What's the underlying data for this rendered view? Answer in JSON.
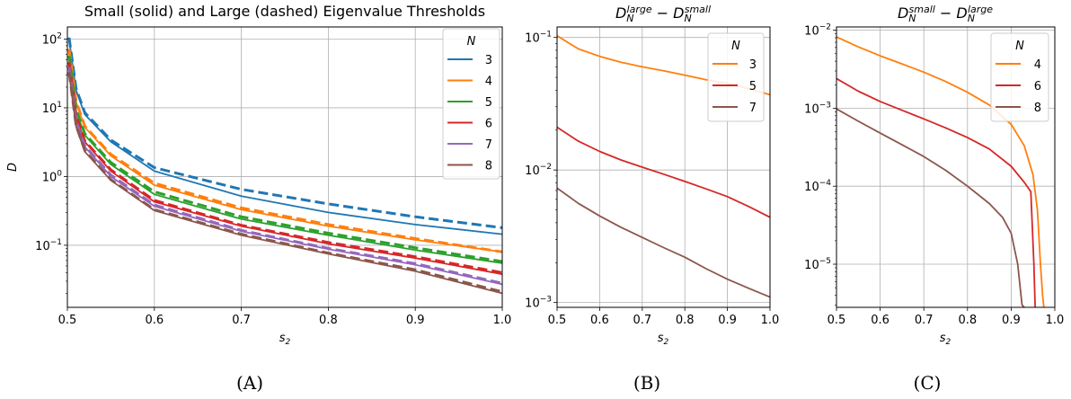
{
  "colors": {
    "N3": "#1f77b4",
    "N4": "#ff7f0e",
    "N5": "#2ca02c",
    "N6": "#d62728",
    "N7": "#9467bd",
    "N8": "#8c564b"
  },
  "chart_data": [
    {
      "panel": "A",
      "caption": "(A)",
      "type": "line",
      "title": "Small (solid) and Large (dashed) Eigenvalue Thresholds",
      "xlabel": "s2",
      "ylabel": "D",
      "xlim": [
        0.5,
        1.0
      ],
      "ylim": [
        0.0125,
        150
      ],
      "yscale": "log",
      "grid": true,
      "xticks": [
        "0.5",
        "0.6",
        "0.7",
        "0.8",
        "0.9",
        "1.0"
      ],
      "yticks": [
        "10^2",
        "10^1",
        "10^0",
        "10^-1"
      ],
      "legend": {
        "title": "N",
        "placement": "top-right",
        "labels": [
          "3",
          "4",
          "5",
          "6",
          "7",
          "8"
        ]
      },
      "x": [
        0.502,
        0.51,
        0.52,
        0.55,
        0.6,
        0.7,
        0.8,
        0.9,
        1.0
      ],
      "series": [
        {
          "name": "3",
          "style": "solid",
          "values": [
            100,
            18,
            8,
            3.2,
            1.2,
            0.52,
            0.3,
            0.2,
            0.145
          ]
        },
        {
          "name": "3",
          "style": "dashed",
          "values": [
            105,
            19,
            8.5,
            3.4,
            1.35,
            0.65,
            0.4,
            0.26,
            0.18
          ]
        },
        {
          "name": "4",
          "style": "solid",
          "values": [
            70,
            12,
            5.2,
            2.0,
            0.75,
            0.33,
            0.19,
            0.12,
            0.08
          ]
        },
        {
          "name": "4",
          "style": "dashed",
          "values": [
            72,
            12.5,
            5.4,
            2.1,
            0.8,
            0.35,
            0.2,
            0.125,
            0.08
          ]
        },
        {
          "name": "5",
          "style": "solid",
          "values": [
            55,
            9,
            4.0,
            1.5,
            0.55,
            0.24,
            0.14,
            0.085,
            0.055
          ]
        },
        {
          "name": "5",
          "style": "dashed",
          "values": [
            57,
            9.5,
            4.2,
            1.6,
            0.6,
            0.26,
            0.15,
            0.092,
            0.058
          ]
        },
        {
          "name": "6",
          "style": "solid",
          "values": [
            45,
            7.5,
            3.2,
            1.2,
            0.43,
            0.19,
            0.105,
            0.065,
            0.038
          ]
        },
        {
          "name": "6",
          "style": "dashed",
          "values": [
            46,
            7.7,
            3.3,
            1.25,
            0.45,
            0.195,
            0.11,
            0.068,
            0.04
          ]
        },
        {
          "name": "7",
          "style": "solid",
          "values": [
            38,
            6.2,
            2.7,
            1.0,
            0.37,
            0.16,
            0.088,
            0.052,
            0.027
          ]
        },
        {
          "name": "7",
          "style": "dashed",
          "values": [
            39,
            6.4,
            2.8,
            1.05,
            0.385,
            0.165,
            0.09,
            0.054,
            0.028
          ]
        },
        {
          "name": "8",
          "style": "solid",
          "values": [
            32,
            5.3,
            2.3,
            0.88,
            0.32,
            0.14,
            0.075,
            0.042,
            0.02
          ]
        },
        {
          "name": "8",
          "style": "dashed",
          "values": [
            33,
            5.5,
            2.4,
            0.9,
            0.33,
            0.145,
            0.077,
            0.044,
            0.021
          ]
        }
      ]
    },
    {
      "panel": "B",
      "caption": "(B)",
      "type": "line",
      "title": "D_N^large − D_N^small",
      "xlabel": "s2",
      "ylabel": "",
      "xlim": [
        0.5,
        1.0
      ],
      "ylim": [
        0.00092,
        0.12
      ],
      "yscale": "log",
      "grid": true,
      "xticks": [
        "0.5",
        "0.6",
        "0.7",
        "0.8",
        "0.9",
        "1.0"
      ],
      "yticks": [
        "10^-1",
        "10^-2",
        "10^-3"
      ],
      "legend": {
        "title": "N",
        "placement": "top-right",
        "labels": [
          "3",
          "5",
          "7"
        ]
      },
      "x": [
        0.5,
        0.55,
        0.6,
        0.65,
        0.7,
        0.75,
        0.8,
        0.85,
        0.9,
        0.95,
        1.0
      ],
      "series": [
        {
          "name": "3",
          "color_key": "N4",
          "values": [
            0.103,
            0.082,
            0.072,
            0.065,
            0.06,
            0.056,
            0.052,
            0.048,
            0.045,
            0.041,
            0.037
          ]
        },
        {
          "name": "5",
          "color_key": "N6",
          "values": [
            0.021,
            0.0165,
            0.0138,
            0.0119,
            0.0105,
            0.0093,
            0.0082,
            0.0072,
            0.0063,
            0.0053,
            0.0044
          ]
        },
        {
          "name": "7",
          "color_key": "N8",
          "values": [
            0.0073,
            0.0056,
            0.0045,
            0.0037,
            0.0031,
            0.0026,
            0.0022,
            0.0018,
            0.0015,
            0.00128,
            0.0011
          ]
        }
      ]
    },
    {
      "panel": "C",
      "caption": "(C)",
      "type": "line",
      "title": "D_N^small − D_N^large",
      "xlabel": "s2",
      "ylabel": "",
      "xlim": [
        0.5,
        1.0
      ],
      "ylim": [
        2.8e-06,
        0.011
      ],
      "yscale": "log",
      "grid": true,
      "xticks": [
        "0.5",
        "0.6",
        "0.7",
        "0.8",
        "0.9",
        "1.0"
      ],
      "yticks": [
        "10^-2",
        "10^-3",
        "10^-4",
        "10^-5"
      ],
      "legend": {
        "title": "N",
        "placement": "top-right",
        "labels": [
          "4",
          "6",
          "8"
        ]
      },
      "series": [
        {
          "name": "4",
          "color_key": "N4",
          "x": [
            0.5,
            0.55,
            0.6,
            0.65,
            0.7,
            0.75,
            0.8,
            0.85,
            0.9,
            0.93,
            0.95,
            0.96,
            0.967,
            0.972,
            0.975
          ],
          "values": [
            0.0082,
            0.0061,
            0.0047,
            0.0037,
            0.0029,
            0.0022,
            0.0016,
            0.0011,
            0.00062,
            0.00033,
            0.00014,
            5e-05,
            1e-05,
            4e-06,
            2.8e-06
          ]
        },
        {
          "name": "6",
          "color_key": "N6",
          "x": [
            0.5,
            0.55,
            0.6,
            0.65,
            0.7,
            0.75,
            0.8,
            0.85,
            0.9,
            0.93,
            0.945,
            0.952,
            0.955
          ],
          "values": [
            0.0024,
            0.00165,
            0.00122,
            0.00094,
            0.00073,
            0.00056,
            0.00042,
            0.0003,
            0.00018,
            0.000112,
            8.5e-05,
            1e-05,
            2.8e-06
          ]
        },
        {
          "name": "8",
          "color_key": "N8",
          "x": [
            0.5,
            0.55,
            0.6,
            0.65,
            0.7,
            0.75,
            0.8,
            0.85,
            0.88,
            0.9,
            0.915,
            0.925,
            0.93
          ],
          "values": [
            0.00098,
            0.00068,
            0.00048,
            0.00034,
            0.00024,
            0.00016,
            0.0001,
            6e-05,
            4e-05,
            2.5e-05,
            1e-05,
            3e-06,
            2.8e-06
          ]
        }
      ]
    }
  ]
}
